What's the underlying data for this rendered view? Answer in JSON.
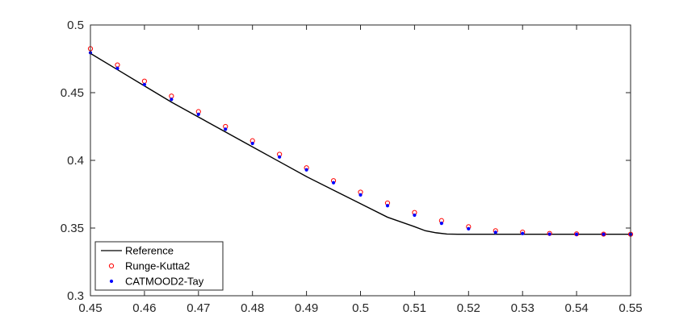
{
  "chart_data": {
    "type": "line",
    "title": "",
    "xlabel": "",
    "ylabel": "",
    "xlim": [
      0.45,
      0.55
    ],
    "ylim": [
      0.3,
      0.5
    ],
    "grid": false,
    "legend_position": "bottom-left",
    "x_ticks": [
      "0.45",
      "0.46",
      "0.47",
      "0.48",
      "0.49",
      "0.5",
      "0.51",
      "0.52",
      "0.53",
      "0.54",
      "0.55"
    ],
    "y_ticks": [
      "0.3",
      "0.35",
      "0.4",
      "0.45",
      "0.5"
    ],
    "series": [
      {
        "name": "Reference",
        "style": "line",
        "color": "#000000",
        "x": [
          0.45,
          0.455,
          0.46,
          0.465,
          0.47,
          0.475,
          0.48,
          0.485,
          0.49,
          0.495,
          0.5,
          0.505,
          0.51,
          0.512,
          0.514,
          0.516,
          0.518,
          0.52,
          0.525,
          0.53,
          0.535,
          0.54,
          0.545,
          0.55
        ],
        "y": [
          0.479,
          0.467,
          0.455,
          0.443,
          0.432,
          0.421,
          0.41,
          0.399,
          0.388,
          0.378,
          0.368,
          0.358,
          0.351,
          0.348,
          0.3465,
          0.3456,
          0.3454,
          0.3454,
          0.3454,
          0.3454,
          0.3454,
          0.3454,
          0.3454,
          0.3454
        ]
      },
      {
        "name": "Runge-Kutta2",
        "style": "marker-circle",
        "color": "#ff0000",
        "x": [
          0.45,
          0.455,
          0.46,
          0.465,
          0.47,
          0.475,
          0.48,
          0.485,
          0.49,
          0.495,
          0.5,
          0.505,
          0.51,
          0.515,
          0.52,
          0.525,
          0.53,
          0.535,
          0.54,
          0.545,
          0.55
        ],
        "y": [
          0.4825,
          0.4705,
          0.4585,
          0.4475,
          0.436,
          0.425,
          0.4145,
          0.4045,
          0.3945,
          0.385,
          0.3765,
          0.3685,
          0.3615,
          0.3555,
          0.351,
          0.348,
          0.347,
          0.346,
          0.3457,
          0.3455,
          0.3454
        ]
      },
      {
        "name": "CATMOOD2-Tay",
        "style": "marker-dot",
        "color": "#0000ff",
        "x": [
          0.45,
          0.455,
          0.46,
          0.465,
          0.47,
          0.475,
          0.48,
          0.485,
          0.49,
          0.495,
          0.5,
          0.505,
          0.51,
          0.515,
          0.52,
          0.525,
          0.53,
          0.535,
          0.54,
          0.545,
          0.55
        ],
        "y": [
          0.4795,
          0.468,
          0.456,
          0.445,
          0.434,
          0.423,
          0.4125,
          0.4025,
          0.393,
          0.3835,
          0.3745,
          0.3665,
          0.3595,
          0.3535,
          0.3495,
          0.3468,
          0.346,
          0.3455,
          0.3454,
          0.3454,
          0.3454
        ]
      }
    ]
  }
}
